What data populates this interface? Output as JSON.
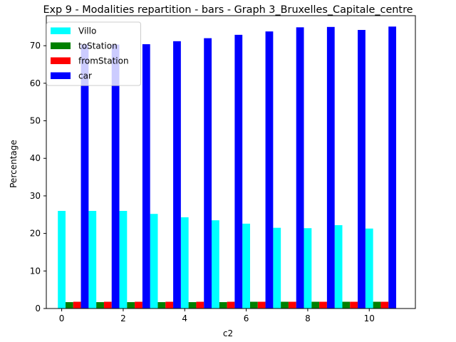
{
  "chart_data": {
    "type": "bar",
    "title": "Exp 9 - Modalities repartition - bars - Graph 3_Bruxelles_Capitale_centre",
    "xlabel": "c2",
    "ylabel": "Percentage",
    "x": [
      0,
      1,
      2,
      3,
      4,
      5,
      6,
      7,
      8,
      9,
      10
    ],
    "xlim": [
      -0.5,
      11.5
    ],
    "ylim": [
      0,
      78
    ],
    "xticks": [
      "0",
      "2",
      "4",
      "6",
      "8",
      "10"
    ],
    "yticks": [
      "0",
      "10",
      "20",
      "30",
      "40",
      "50",
      "60",
      "70"
    ],
    "grid": false,
    "legend_position": "top-left",
    "series": [
      {
        "name": "Villo",
        "color": "#00ffff",
        "values": [
          26.0,
          26.0,
          26.0,
          25.2,
          24.3,
          23.5,
          22.6,
          21.5,
          21.4,
          22.2,
          21.3
        ]
      },
      {
        "name": "toStation",
        "color": "#008000",
        "values": [
          1.7,
          1.7,
          1.7,
          1.7,
          1.7,
          1.7,
          1.8,
          1.8,
          1.8,
          1.8,
          1.8
        ]
      },
      {
        "name": "fromStation",
        "color": "#ff0000",
        "values": [
          1.8,
          1.8,
          1.8,
          1.8,
          1.8,
          1.8,
          1.8,
          1.8,
          1.8,
          1.8,
          1.8
        ]
      },
      {
        "name": "car",
        "color": "#0000ff",
        "values": [
          70.3,
          70.3,
          70.4,
          71.2,
          72.0,
          72.9,
          73.8,
          74.9,
          75.0,
          74.2,
          75.1
        ]
      }
    ]
  }
}
